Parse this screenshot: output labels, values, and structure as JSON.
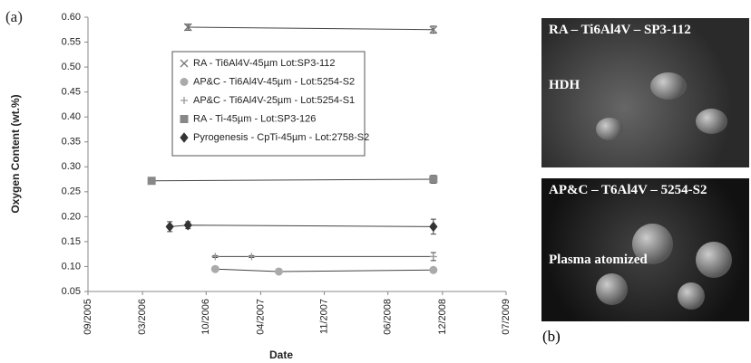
{
  "chart_data": {
    "type": "scatter",
    "y_label": "Oxygen Content (wt.%)",
    "x_label": "Date",
    "xlim": [
      "2005-09",
      "2009-07"
    ],
    "xticks": [
      {
        "value": "2005-09",
        "label": "09/2005"
      },
      {
        "value": "2006-03",
        "label": "03/2006"
      },
      {
        "value": "2006-10",
        "label": "10/2006"
      },
      {
        "value": "2007-04",
        "label": "04/2007"
      },
      {
        "value": "2007-11",
        "label": "11/2007"
      },
      {
        "value": "2008-06",
        "label": "06/2008"
      },
      {
        "value": "2008-12",
        "label": "12/2008"
      },
      {
        "value": "2009-07",
        "label": "07/2009"
      }
    ],
    "ylim": [
      0.05,
      0.6
    ],
    "yticks": [
      0.05,
      {
        "value": 0.1,
        "label": "0.10"
      },
      0.15,
      {
        "value": 0.2,
        "label": "0.20"
      },
      0.25,
      {
        "value": 0.3,
        "label": "0.30"
      },
      0.35,
      {
        "value": 0.4,
        "label": "0.40"
      },
      0.45,
      {
        "value": 0.5,
        "label": "0.50"
      },
      0.55,
      {
        "value": 0.6,
        "label": "0.60"
      }
    ],
    "series": [
      {
        "name": "RA - Ti6Al4V-45µm Lot:SP3-112",
        "marker": "x",
        "color": "#777777",
        "x": [
          "2006-08",
          "2008-11"
        ],
        "values": [
          0.58,
          0.575
        ],
        "errors": [
          0.006,
          0.007
        ]
      },
      {
        "name": "AP&C - Ti6Al4V-45µm - Lot:5254-S2",
        "marker": "circle",
        "color": "#aaaaaa",
        "x": [
          "2006-11",
          "2007-06",
          "2008-11"
        ],
        "values": [
          0.095,
          0.09,
          0.093
        ],
        "errors": [
          0.003,
          0.002,
          0.003
        ]
      },
      {
        "name": "AP&C - Ti6Al4V-25µm - Lot:5254-S1",
        "marker": "plus",
        "color": "#999999",
        "x": [
          "2006-11",
          "2007-03",
          "2008-11"
        ],
        "values": [
          0.12,
          0.12,
          0.12
        ],
        "errors": [
          0.002,
          0.002,
          0.008
        ]
      },
      {
        "name": "RA - Ti-45µm - Lot:SP3-126",
        "marker": "square",
        "color": "#888888",
        "x": [
          "2006-04",
          "2008-11"
        ],
        "values": [
          0.272,
          0.275
        ],
        "errors": [
          0.003,
          0.008
        ]
      },
      {
        "name": "Pyrogenesis - CpTi-45µm - Lot:2758-S2",
        "marker": "diamond",
        "color": "#333333",
        "x": [
          "2006-06",
          "2006-08",
          "2008-11"
        ],
        "values": [
          0.18,
          0.183,
          0.18
        ],
        "errors": [
          0.01,
          0.007,
          0.015
        ]
      }
    ]
  },
  "panel_labels": {
    "a": "(a)",
    "b": "(b)"
  },
  "images": [
    {
      "caption": "RA – Ti6Al4V – SP3-112",
      "note": "HDH"
    },
    {
      "caption": "AP&C – T6Al4V – 5254-S2",
      "note": "Plasma atomized"
    }
  ]
}
